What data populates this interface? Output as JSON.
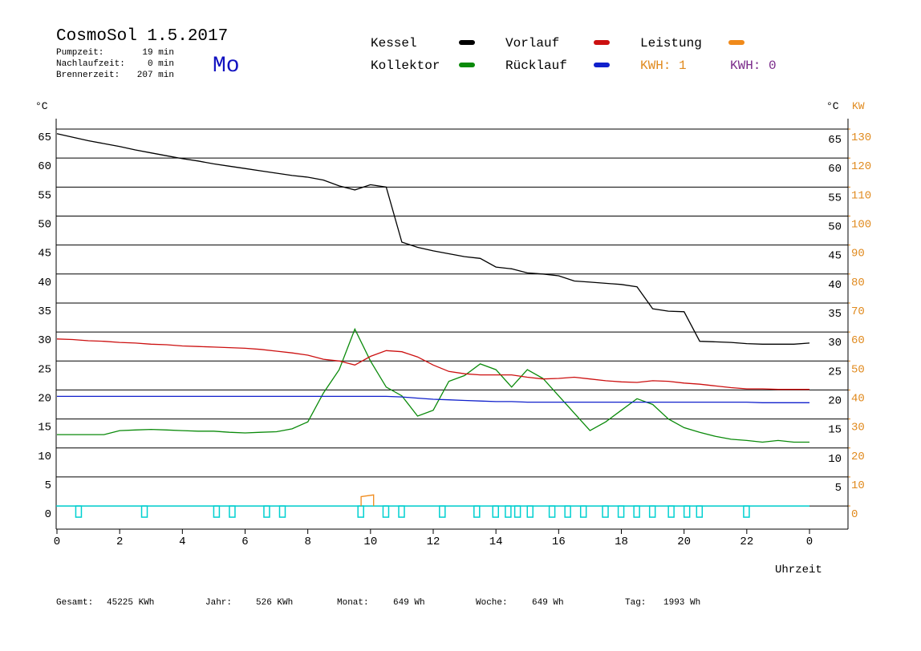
{
  "chart_data": {
    "type": "line",
    "title": "CosmoSol 1.5.2017",
    "info": [
      [
        "Pumpzeit:",
        "19 min"
      ],
      [
        "Nachlaufzeit:",
        "0 min"
      ],
      [
        "Brennerzeit:",
        "207 min"
      ]
    ],
    "day": "Mo",
    "day_color": "#1010c0",
    "kwh_labels": [
      {
        "text": "KWH: 1",
        "color": "#e08a1e"
      },
      {
        "text": "KWH: 0",
        "color": "#7a2a8a"
      }
    ],
    "ylabel": "°C",
    "y2label_left": "°C",
    "y2label": "KW",
    "y2color": "#e08a1e",
    "xlabel": "Uhrzeit",
    "x": [
      0,
      0.5,
      1,
      1.5,
      2,
      2.5,
      3,
      3.5,
      4,
      4.5,
      5,
      5.5,
      6,
      6.5,
      7,
      7.5,
      8,
      8.5,
      9,
      9.5,
      10,
      10.5,
      11,
      11.5,
      12,
      12.5,
      13,
      13.5,
      14,
      14.5,
      15,
      15.5,
      16,
      16.5,
      17,
      17.5,
      18,
      18.5,
      19,
      19.5,
      20,
      20.5,
      21,
      21.5,
      22,
      22.5,
      23,
      23.5,
      24
    ],
    "series": [
      {
        "name": "Kessel",
        "color": "#000000",
        "values": [
          64.2,
          63.6,
          63.0,
          62.5,
          62.0,
          61.4,
          60.9,
          60.4,
          59.9,
          59.5,
          59.0,
          58.6,
          58.2,
          57.8,
          57.4,
          57.0,
          56.7,
          56.2,
          55.2,
          54.5,
          55.4,
          55.0,
          45.5,
          44.6,
          44.0,
          43.5,
          43.0,
          42.7,
          41.2,
          40.9,
          40.2,
          40.0,
          39.7,
          38.8,
          38.6,
          38.4,
          38.2,
          37.8,
          34.0,
          33.6,
          33.5,
          28.4,
          28.3,
          28.2,
          28.0,
          27.9,
          27.9,
          27.9,
          28.1
        ]
      },
      {
        "name": "Kollektor",
        "color": "#0a8a0a",
        "values": [
          12.3,
          12.3,
          12.3,
          12.3,
          13.0,
          13.1,
          13.2,
          13.1,
          13.0,
          12.9,
          12.9,
          12.7,
          12.6,
          12.7,
          12.8,
          13.3,
          14.5,
          19.5,
          23.5,
          30.5,
          25.0,
          20.5,
          19.0,
          15.5,
          16.5,
          21.5,
          22.5,
          24.5,
          23.5,
          20.5,
          23.5,
          22.0,
          19.0,
          16.0,
          13.0,
          14.5,
          16.5,
          18.5,
          17.5,
          15.0,
          13.5,
          12.7,
          12.0,
          11.5,
          11.3,
          11.0,
          11.3,
          11.0,
          11.0
        ]
      },
      {
        "name": "Vorlauf",
        "color": "#cc1010",
        "values": [
          28.8,
          28.7,
          28.5,
          28.4,
          28.2,
          28.1,
          27.9,
          27.8,
          27.6,
          27.5,
          27.4,
          27.3,
          27.2,
          27.0,
          26.7,
          26.4,
          26.0,
          25.3,
          25.0,
          24.3,
          25.8,
          26.8,
          26.6,
          25.7,
          24.3,
          23.2,
          22.8,
          22.6,
          22.6,
          22.6,
          22.2,
          21.9,
          22.0,
          22.2,
          21.9,
          21.6,
          21.4,
          21.3,
          21.6,
          21.5,
          21.2,
          21.0,
          20.7,
          20.4,
          20.2,
          20.2,
          20.1,
          20.1,
          20.1
        ]
      },
      {
        "name": "Rücklauf",
        "color": "#1020cc",
        "values": [
          18.9,
          18.9,
          18.9,
          18.9,
          18.9,
          18.9,
          18.9,
          18.9,
          18.9,
          18.9,
          18.9,
          18.9,
          18.9,
          18.9,
          18.9,
          18.9,
          18.9,
          18.9,
          18.9,
          18.9,
          18.9,
          18.9,
          18.8,
          18.6,
          18.4,
          18.3,
          18.2,
          18.1,
          18.0,
          18.0,
          17.9,
          17.9,
          17.9,
          17.9,
          17.9,
          17.9,
          17.9,
          17.9,
          17.9,
          17.9,
          17.9,
          17.9,
          17.9,
          17.9,
          17.9,
          17.8,
          17.8,
          17.8,
          17.8
        ]
      },
      {
        "name": "Leistung",
        "color": "#f08a1a",
        "axis": "y2",
        "x": [
          9.7,
          9.7,
          10.1,
          10.1
        ],
        "values": [
          0,
          3.2,
          3.8,
          0
        ]
      }
    ],
    "pump_pulses": {
      "color": "#00d0d0",
      "x": [
        0.6,
        2.7,
        5.0,
        5.5,
        6.6,
        7.1,
        9.6,
        10.4,
        10.9,
        12.2,
        13.3,
        13.9,
        14.3,
        14.6,
        15.0,
        15.7,
        16.2,
        16.7,
        17.4,
        17.9,
        18.4,
        18.9,
        19.5,
        20.0,
        20.4,
        21.9
      ]
    },
    "xlim": [
      0,
      24
    ],
    "xticks": [
      0,
      2,
      4,
      6,
      8,
      10,
      12,
      14,
      16,
      18,
      20,
      22,
      {
        "value": 24,
        "label": "0"
      }
    ],
    "ylim": [
      -4,
      65
    ],
    "yticks": [
      0,
      5,
      10,
      15,
      20,
      25,
      30,
      35,
      40,
      45,
      50,
      55,
      60,
      65
    ],
    "yticks_right": [
      5,
      10,
      15,
      20,
      25,
      30,
      35,
      40,
      45,
      50,
      55,
      60,
      65
    ],
    "y2lim": [
      -8,
      130
    ],
    "y2ticks": [
      0,
      10,
      20,
      30,
      40,
      50,
      60,
      70,
      80,
      90,
      100,
      110,
      120,
      130
    ],
    "grid": true,
    "footer": [
      [
        "Gesamt:",
        "45225 KWh"
      ],
      [
        "Jahr:",
        "526 KWh"
      ],
      [
        "Monat:",
        "649 Wh"
      ],
      [
        "Woche:",
        "649 Wh"
      ],
      [
        "Tag:",
        "1993 Wh"
      ]
    ]
  }
}
